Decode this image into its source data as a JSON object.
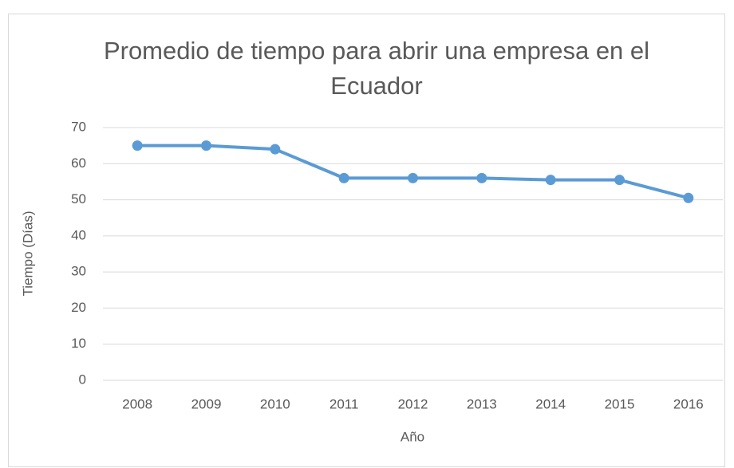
{
  "chart_data": {
    "type": "line",
    "title": "Promedio de tiempo para abrir una empresa en el Ecuador",
    "x_label": "Año",
    "y_label": "Tiempo (Días)",
    "categories": [
      "2008",
      "2009",
      "2010",
      "2011",
      "2012",
      "2013",
      "2014",
      "2015",
      "2016"
    ],
    "values": [
      65,
      65,
      64,
      56,
      56,
      56,
      55.5,
      55.5,
      50.5
    ],
    "color": "#5b9bd5",
    "ylim": [
      0,
      70
    ],
    "yticks": [
      0,
      10,
      20,
      30,
      40,
      50,
      60,
      70
    ],
    "grid": true
  }
}
